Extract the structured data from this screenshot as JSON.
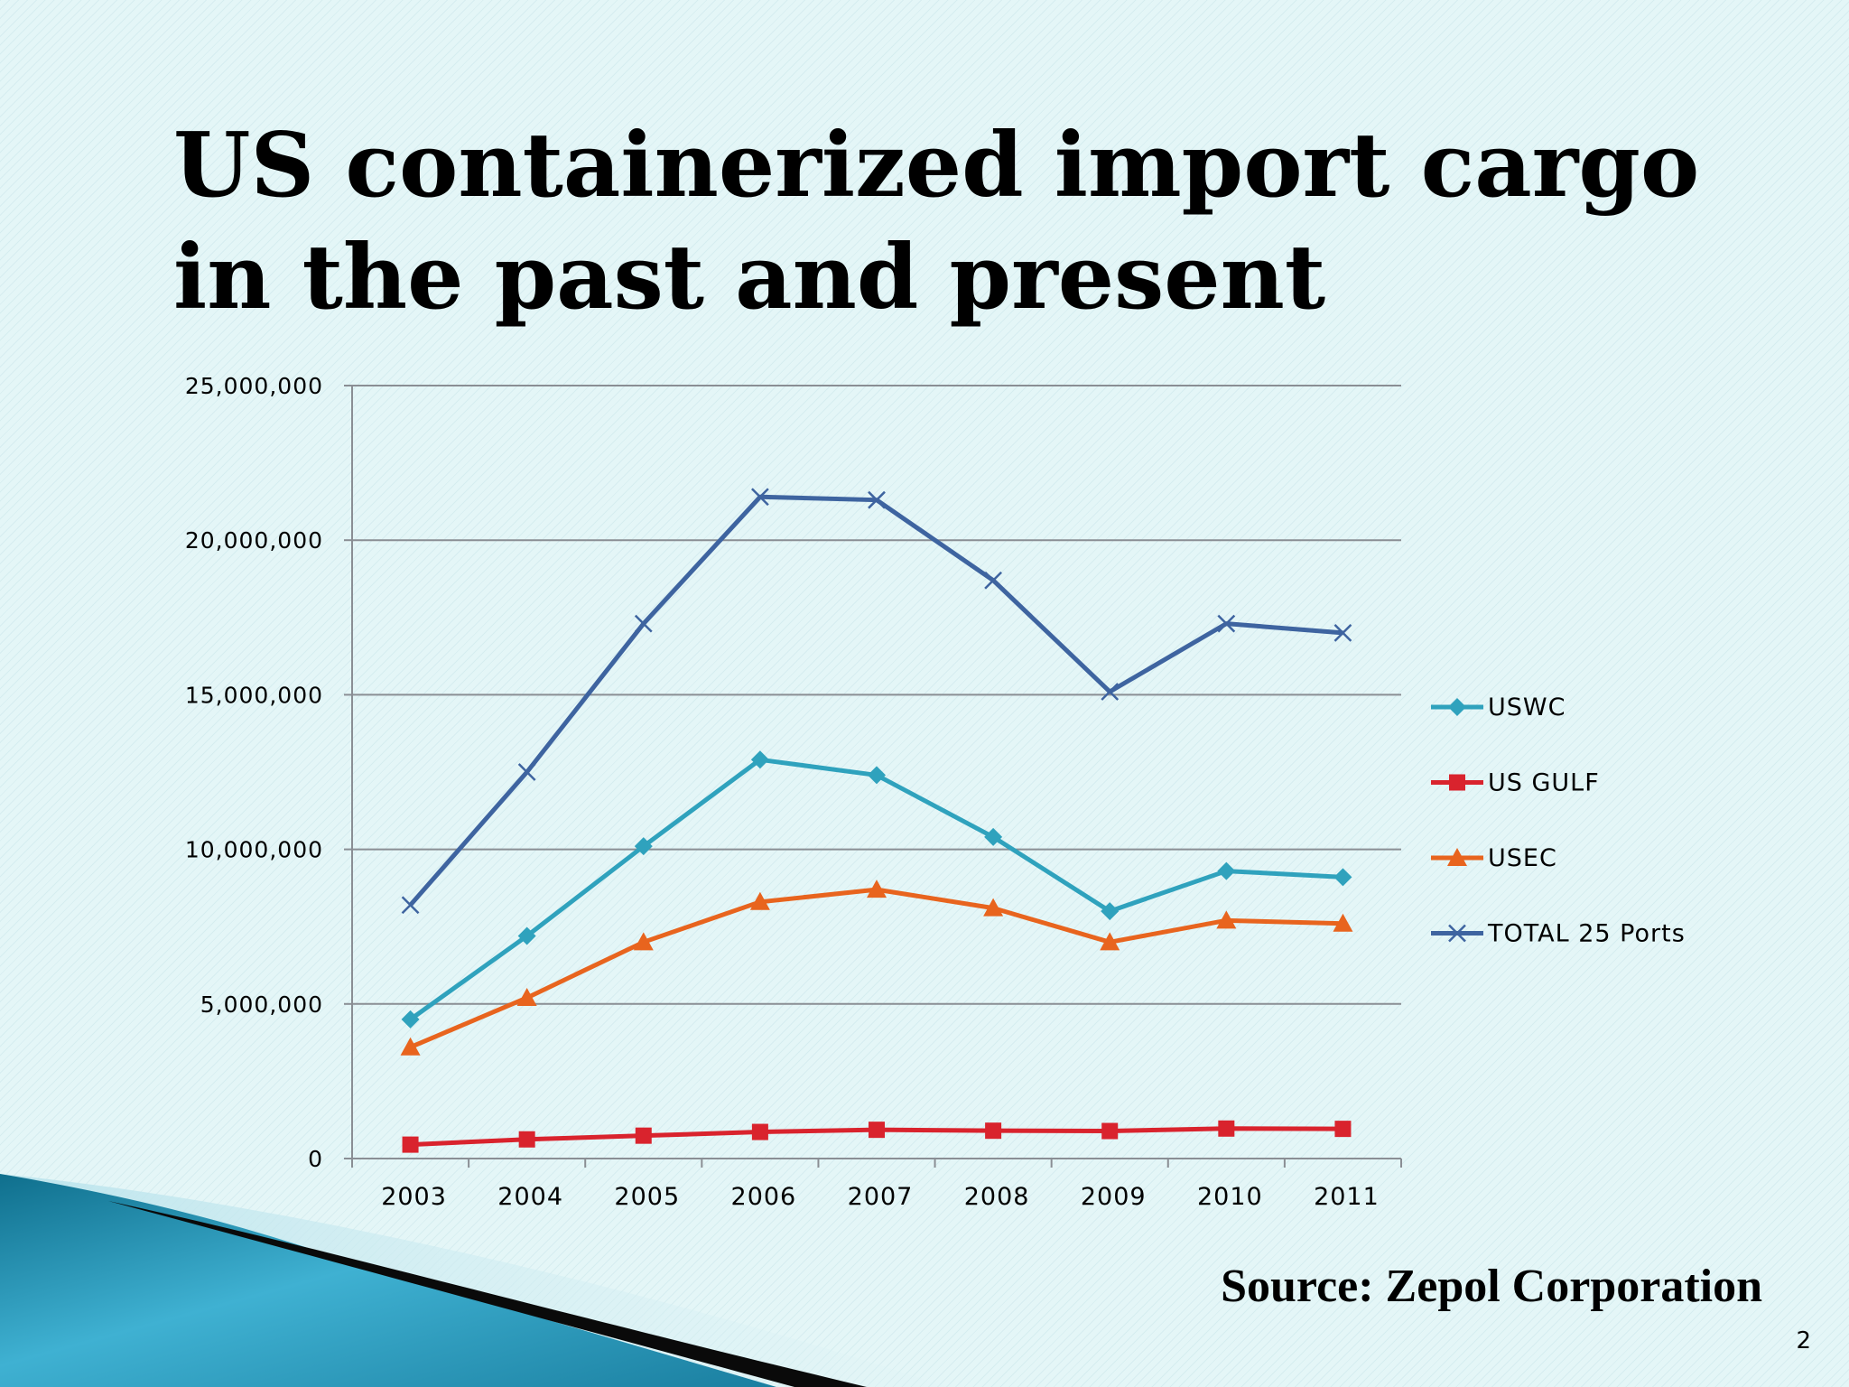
{
  "slide": {
    "title_line1": "US containerized import cargo",
    "title_line2": "in the past and present",
    "source": "Source:  Zepol Corporation",
    "page_number": "2"
  },
  "chart_data": {
    "type": "line",
    "title": "",
    "xlabel": "",
    "ylabel": "",
    "categories": [
      "2003",
      "2004",
      "2005",
      "2006",
      "2007",
      "2008",
      "2009",
      "2010",
      "2011"
    ],
    "ylim": [
      0,
      25000000
    ],
    "yticks": [
      0,
      5000000,
      10000000,
      15000000,
      20000000,
      25000000
    ],
    "ytick_labels": [
      "0",
      "5,000,000",
      "10,000,000",
      "15,000,000",
      "20,000,000",
      "25,000,000"
    ],
    "grid": true,
    "legend": "right",
    "series": [
      {
        "name": "USWC",
        "color": "#2fa2bd",
        "marker": "diamond",
        "values": [
          4500000,
          7200000,
          10100000,
          12900000,
          12400000,
          10400000,
          8000000,
          9300000,
          9100000
        ]
      },
      {
        "name": "US GULF",
        "color": "#d9232d",
        "marker": "square",
        "values": [
          450000,
          620000,
          740000,
          860000,
          930000,
          900000,
          890000,
          970000,
          960000
        ]
      },
      {
        "name": "USEC",
        "color": "#e8641e",
        "marker": "triangle",
        "values": [
          3600000,
          5200000,
          7000000,
          8300000,
          8700000,
          8100000,
          7000000,
          7700000,
          7600000
        ]
      },
      {
        "name": "TOTAL 25 Ports",
        "color": "#3e64a0",
        "marker": "x",
        "values": [
          8200000,
          12500000,
          17300000,
          21400000,
          21300000,
          18700000,
          15100000,
          17300000,
          17000000
        ]
      }
    ]
  }
}
